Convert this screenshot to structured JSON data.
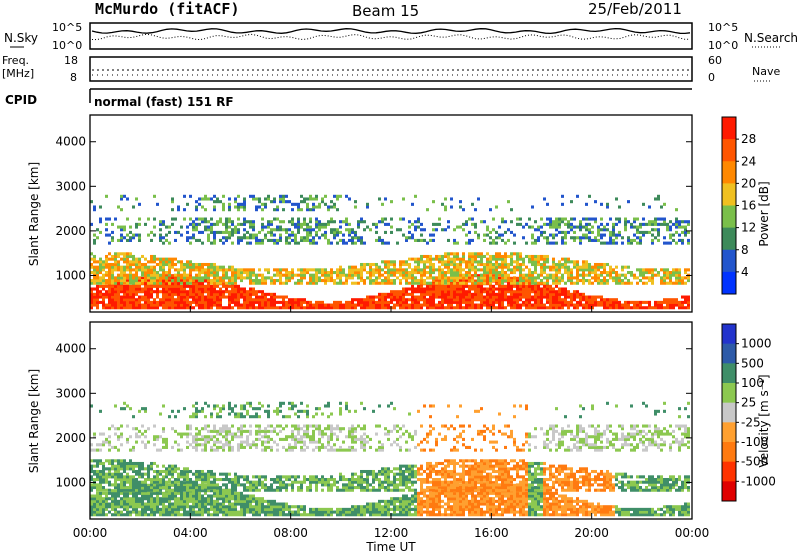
{
  "header": {
    "station": "McMurdo (fitACF)",
    "beam": "Beam 15",
    "date": "25/Feb/2011"
  },
  "noise_panel": {
    "left_label": "N.Sky",
    "right_label": "N.Search",
    "left_ticks": [
      "10^5",
      "10^0"
    ],
    "right_ticks": [
      "10^5",
      "10^0"
    ]
  },
  "freq_panel": {
    "left_label_line1": "Freq.",
    "left_label_line2": "[MHz]",
    "left_ticks": [
      "18",
      "8"
    ],
    "right_label": "Nave",
    "right_ticks": [
      "60",
      "0"
    ]
  },
  "cpid": {
    "label": "CPID",
    "value": "normal (fast) 151 RF"
  },
  "chart_data": [
    {
      "type": "heatmap",
      "title": "Power",
      "ylabel": "Slant Range [km]",
      "xlabel": "",
      "y_ticks": [
        1000,
        2000,
        3000,
        4000
      ],
      "ylim": [
        180,
        4600
      ],
      "xlim": [
        "00:00",
        "24:00"
      ],
      "colorbar": {
        "label": "Power [dB]",
        "ticks": [
          "4",
          "8",
          "12",
          "16",
          "20",
          "24",
          "28"
        ],
        "colors": [
          "#0033ff",
          "#2255cc",
          "#3d8a5a",
          "#7abf4a",
          "#f0c020",
          "#ff8800",
          "#ff5500",
          "#ff1a00"
        ]
      }
    },
    {
      "type": "heatmap",
      "title": "Velocity",
      "ylabel": "Slant Range [km]",
      "xlabel": "Time UT",
      "x_ticks": [
        "00:00",
        "04:00",
        "08:00",
        "12:00",
        "16:00",
        "20:00",
        "00:00"
      ],
      "y_ticks": [
        1000,
        2000,
        3000,
        4000
      ],
      "ylim": [
        180,
        4600
      ],
      "colorbar": {
        "label": "Velocity [m s⁻¹]",
        "ticks": [
          "1000",
          "500",
          "100",
          "25",
          "-25",
          "-100",
          "-500",
          "-1000"
        ],
        "colors": [
          "#2233cc",
          "#2d5aa8",
          "#3f8e68",
          "#8cc850",
          "#c8c8c8",
          "#ffa030",
          "#ff7a10",
          "#ff3300",
          "#e00000"
        ]
      }
    }
  ]
}
